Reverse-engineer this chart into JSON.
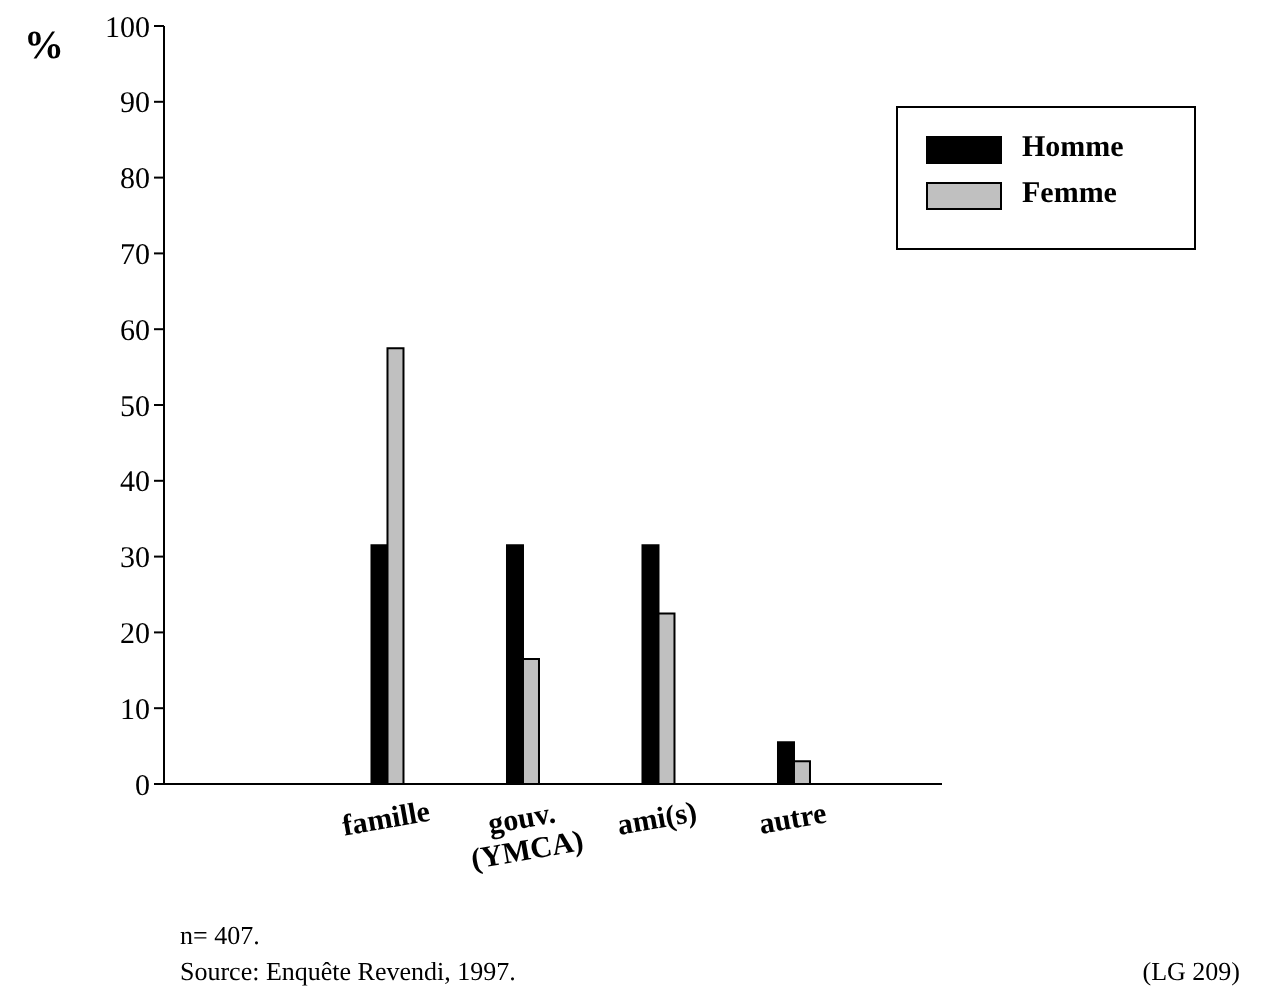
{
  "chart_data": {
    "type": "bar",
    "ylabel": "%",
    "categories": [
      "famille",
      "gouv.\n(YMCA)",
      "ami(s)",
      "autre"
    ],
    "series": [
      {
        "name": "Homme",
        "color": "#000000",
        "values": [
          31.5,
          31.5,
          31.5,
          5.5
        ]
      },
      {
        "name": "Femme",
        "color": "#c0c0c0",
        "values": [
          57.5,
          16.5,
          22.5,
          3
        ]
      }
    ],
    "ylim": [
      0,
      100
    ],
    "yticks": [
      0,
      10,
      20,
      30,
      40,
      50,
      60,
      70,
      80,
      90,
      100
    ],
    "grid": false,
    "legend": "top right",
    "annotations": [
      "n= 407.",
      "Source: Enquête Revendi, 1997.",
      "(LG 209)"
    ]
  }
}
